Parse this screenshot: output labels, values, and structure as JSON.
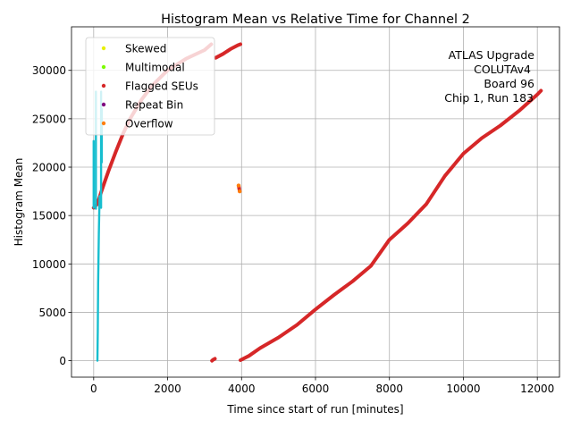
{
  "chart_data": {
    "type": "scatter",
    "title": "Histogram Mean vs Relative Time for Channel 2",
    "xlabel": "Time since start of run [minutes]",
    "ylabel": "Histogram Mean",
    "xlim": [
      -600,
      12600
    ],
    "ylim": [
      -1700,
      34500
    ],
    "x_ticks": [
      0,
      2000,
      4000,
      6000,
      8000,
      10000,
      12000
    ],
    "x_tick_labels": [
      "0",
      "2000",
      "4000",
      "6000",
      "8000",
      "10000",
      "12000"
    ],
    "y_ticks": [
      0,
      5000,
      10000,
      15000,
      20000,
      25000,
      30000
    ],
    "y_tick_labels": [
      "0",
      "5000",
      "10000",
      "15000",
      "20000",
      "25000",
      "30000"
    ],
    "grid": true,
    "legend_position": "top-left",
    "legend": [
      {
        "label": "Skewed",
        "color": "#e8f000"
      },
      {
        "label": "Multimodal",
        "color": "#7cfc00"
      },
      {
        "label": "Flagged SEUs",
        "color": "#d62728"
      },
      {
        "label": "Repeat Bin",
        "color": "#800080"
      },
      {
        "label": "Overflow",
        "color": "#ff7f0e"
      }
    ],
    "annotation": [
      "ATLAS Upgrade",
      "COLUTAv4",
      "Board 96",
      "Chip 1, Run 183"
    ],
    "series": [
      {
        "name": "Flagged SEUs",
        "color": "#d62728",
        "segments": [
          [
            [
              0,
              15800
            ],
            [
              100,
              16200
            ],
            [
              200,
              17400
            ],
            [
              300,
              18500
            ],
            [
              400,
              19600
            ],
            [
              600,
              21600
            ],
            [
              800,
              23500
            ],
            [
              1000,
              25100
            ],
            [
              1300,
              27000
            ],
            [
              1600,
              28500
            ],
            [
              2000,
              30000
            ],
            [
              2500,
              31200
            ],
            [
              3000,
              32100
            ],
            [
              3180,
              32700
            ]
          ],
          [
            [
              3200,
              0
            ],
            [
              3230,
              100
            ],
            [
              3280,
              200
            ]
          ],
          [
            [
              3300,
              31300
            ],
            [
              3500,
              31700
            ],
            [
              3700,
              32200
            ],
            [
              3900,
              32600
            ],
            [
              3970,
              32700
            ]
          ],
          [
            [
              3920,
              18100
            ],
            [
              3950,
              17500
            ]
          ],
          [
            [
              3970,
              50
            ],
            [
              4200,
              500
            ],
            [
              4500,
              1300
            ],
            [
              5000,
              2400
            ],
            [
              5500,
              3700
            ],
            [
              6000,
              5300
            ],
            [
              6500,
              6800
            ],
            [
              7000,
              8200
            ],
            [
              7500,
              9800
            ],
            [
              8000,
              12500
            ],
            [
              8500,
              14200
            ],
            [
              9000,
              16200
            ],
            [
              9500,
              19100
            ],
            [
              10000,
              21400
            ],
            [
              10500,
              23000
            ],
            [
              11000,
              24300
            ],
            [
              11500,
              25800
            ],
            [
              12000,
              27500
            ],
            [
              12100,
              27900
            ]
          ]
        ]
      },
      {
        "name": "Overflow",
        "color": "#ff7f0e",
        "points": [
          [
            3920,
            18100
          ],
          [
            3950,
            17500
          ]
        ]
      },
      {
        "name": "",
        "color": "#17becf",
        "segments": [
          [
            [
              0,
              22700
            ],
            [
              0,
              15800
            ]
          ],
          [
            [
              60,
              27800
            ],
            [
              60,
              15700
            ]
          ],
          [
            [
              100,
              0
            ],
            [
              110,
              3000
            ],
            [
              120,
              8000
            ],
            [
              140,
              13200
            ],
            [
              160,
              17000
            ]
          ],
          [
            [
              200,
              27800
            ],
            [
              200,
              15800
            ]
          ],
          [
            [
              220,
              26000
            ],
            [
              220,
              20500
            ]
          ]
        ]
      }
    ]
  }
}
